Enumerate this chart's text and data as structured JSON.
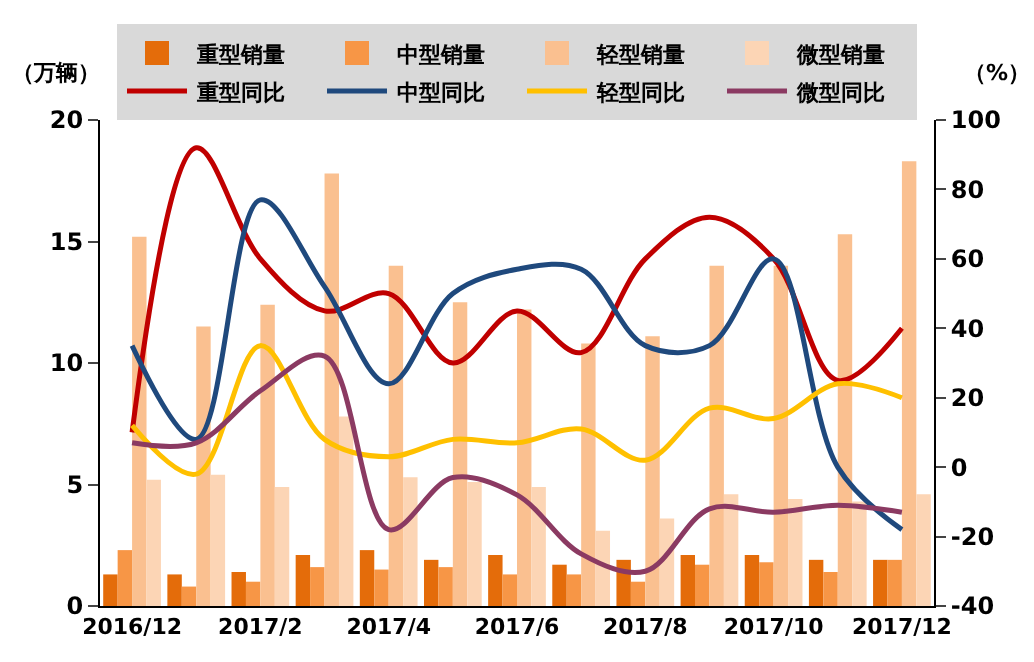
{
  "chart_data": {
    "type": "bar",
    "ylabel": "（万辆）",
    "y2label": "（%）",
    "categories": [
      "2016/12",
      null,
      "2017/2",
      null,
      "2017/4",
      null,
      "2017/6",
      null,
      "2017/8",
      null,
      "2017/10",
      null,
      "2017/12"
    ],
    "ylim": [
      0,
      20
    ],
    "yticks": [
      0,
      5,
      10,
      15,
      20
    ],
    "y2lim": [
      -40,
      100
    ],
    "y2ticks": [
      -40,
      -20,
      0,
      20,
      40,
      60,
      80,
      100
    ],
    "grid": false,
    "legend": "top",
    "marker": "none",
    "line_style": "solid",
    "series": [
      {
        "name": "重型销量",
        "color": "#e46c0a",
        "values": [
          1.3,
          1.3,
          1.4,
          2.1,
          2.3,
          1.9,
          2.1,
          1.7,
          1.9,
          2.1,
          2.1,
          1.9,
          1.9
        ]
      },
      {
        "name": "中型销量",
        "color": "#f79646",
        "values": [
          2.3,
          0.8,
          1.0,
          1.6,
          1.5,
          1.6,
          1.3,
          1.3,
          1.0,
          1.7,
          1.8,
          1.4,
          1.9
        ]
      },
      {
        "name": "轻型销量",
        "color": "#fac090",
        "values": [
          15.2,
          11.5,
          12.4,
          17.8,
          14.0,
          12.5,
          12.2,
          10.8,
          11.1,
          14.0,
          14.0,
          15.3,
          18.3
        ]
      },
      {
        "name": "微型销量",
        "color": "#fcd5b5",
        "values": [
          5.2,
          5.4,
          4.9,
          7.8,
          5.3,
          5.1,
          4.9,
          3.1,
          3.6,
          4.6,
          4.4,
          4.3,
          4.6
        ]
      },
      {
        "name": "重型同比",
        "type": "line",
        "axis": "y2",
        "color": "#c00000",
        "values": [
          10,
          92,
          60,
          45,
          50,
          30,
          45,
          33,
          60,
          72,
          60,
          25,
          40
        ]
      },
      {
        "name": "中型同比",
        "type": "line",
        "axis": "y2",
        "color": "#1f497d",
        "values": [
          35,
          8,
          77,
          52,
          24,
          50,
          57,
          57,
          35,
          35,
          60,
          0,
          -18
        ]
      },
      {
        "name": "轻型同比",
        "type": "line",
        "axis": "y2",
        "color": "#ffc000",
        "values": [
          12,
          -2,
          35,
          8,
          3,
          8,
          7,
          11,
          2,
          17,
          14,
          24,
          20
        ]
      },
      {
        "name": "微型同比",
        "type": "line",
        "axis": "y2",
        "color": "#8b3a62",
        "values": [
          7,
          7,
          22,
          32,
          -18,
          -3,
          -8,
          -25,
          -30,
          -12,
          -13,
          -11,
          -13
        ]
      }
    ]
  }
}
